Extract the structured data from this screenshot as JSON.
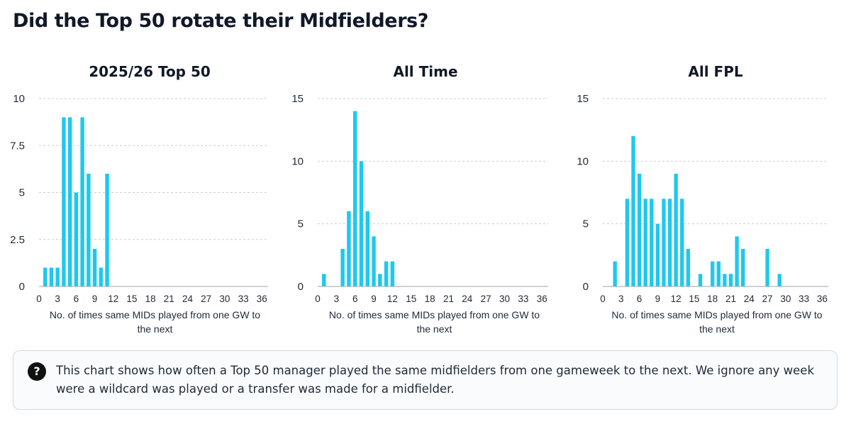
{
  "page": {
    "title": "Did the Top 50 rotate their Midfielders?"
  },
  "info": {
    "icon": "question-circle-icon",
    "text": "This chart shows how often a Top 50 manager played the same midfielders from one gameweek to the next. We ignore any week were a wildcard was played or a transfer was made for a midfielder."
  },
  "colors": {
    "bar": "#1ec8ef",
    "text": "#111827",
    "grid": "#c9ced6"
  },
  "chart_data": [
    {
      "type": "bar",
      "title": "2025/26 Top 50",
      "xlabel": "No. of times same MIDs played from one GW to the next",
      "ylabel": "",
      "xlim": [
        0,
        37
      ],
      "ylim": [
        0,
        10
      ],
      "yticks": [
        "0",
        "2.5",
        "5",
        "7.5",
        "10"
      ],
      "xticks": [
        "0",
        "3",
        "6",
        "9",
        "12",
        "15",
        "18",
        "21",
        "24",
        "27",
        "30",
        "33",
        "36"
      ],
      "grid": "horizontal dashed",
      "x": [
        1,
        2,
        3,
        4,
        5,
        6,
        7,
        8,
        9,
        10,
        11
      ],
      "values": [
        1,
        1,
        1,
        9,
        9,
        5,
        9,
        6,
        2,
        1,
        6
      ]
    },
    {
      "type": "bar",
      "title": "All Time",
      "xlabel": "No. of times same MIDs played from one GW to the next",
      "ylabel": "",
      "xlim": [
        0,
        37
      ],
      "ylim": [
        0,
        15
      ],
      "yticks": [
        "0",
        "5",
        "10",
        "15"
      ],
      "xticks": [
        "0",
        "3",
        "6",
        "9",
        "12",
        "15",
        "18",
        "21",
        "24",
        "27",
        "30",
        "33",
        "36"
      ],
      "grid": "horizontal dashed",
      "x": [
        1,
        4,
        5,
        6,
        7,
        8,
        9,
        10,
        11,
        12
      ],
      "values": [
        1,
        3,
        6,
        14,
        10,
        6,
        4,
        1,
        2,
        2
      ]
    },
    {
      "type": "bar",
      "title": "All FPL",
      "xlabel": "No. of times same MIDs played from one GW to the next",
      "ylabel": "",
      "xlim": [
        0,
        37
      ],
      "ylim": [
        0,
        15
      ],
      "yticks": [
        "0",
        "5",
        "10",
        "15"
      ],
      "xticks": [
        "0",
        "3",
        "6",
        "9",
        "12",
        "15",
        "18",
        "21",
        "24",
        "27",
        "30",
        "33",
        "36"
      ],
      "grid": "horizontal dashed",
      "x": [
        2,
        4,
        5,
        6,
        7,
        8,
        9,
        10,
        11,
        12,
        13,
        14,
        16,
        18,
        19,
        20,
        21,
        22,
        23,
        27,
        29
      ],
      "values": [
        2,
        7,
        12,
        9,
        7,
        7,
        5,
        7,
        7,
        9,
        7,
        3,
        1,
        2,
        2,
        1,
        1,
        4,
        3,
        3,
        1
      ]
    }
  ]
}
